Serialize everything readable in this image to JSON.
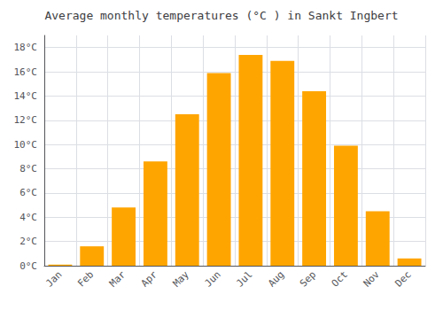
{
  "chart_data": {
    "type": "bar",
    "title": "Average monthly temperatures (°C ) in Sankt Ingbert",
    "categories": [
      "Jan",
      "Feb",
      "Mar",
      "Apr",
      "May",
      "Jun",
      "Jul",
      "Aug",
      "Sep",
      "Oct",
      "Nov",
      "Dec"
    ],
    "values": [
      0.1,
      1.6,
      4.8,
      8.6,
      12.5,
      15.9,
      17.4,
      16.9,
      14.4,
      9.9,
      4.5,
      0.6
    ],
    "color": "#FFA500",
    "ylim": [
      0,
      19
    ],
    "yticks": [
      {
        "value": 0,
        "label": "0°C"
      },
      {
        "value": 2,
        "label": "2°C"
      },
      {
        "value": 4,
        "label": "4°C"
      },
      {
        "value": 6,
        "label": "6°C"
      },
      {
        "value": 8,
        "label": "8°C"
      },
      {
        "value": 10,
        "label": "10°C"
      },
      {
        "value": 12,
        "label": "12°C"
      },
      {
        "value": 14,
        "label": "14°C"
      },
      {
        "value": 16,
        "label": "16°C"
      },
      {
        "value": 18,
        "label": "18°C"
      }
    ],
    "grid": true
  }
}
